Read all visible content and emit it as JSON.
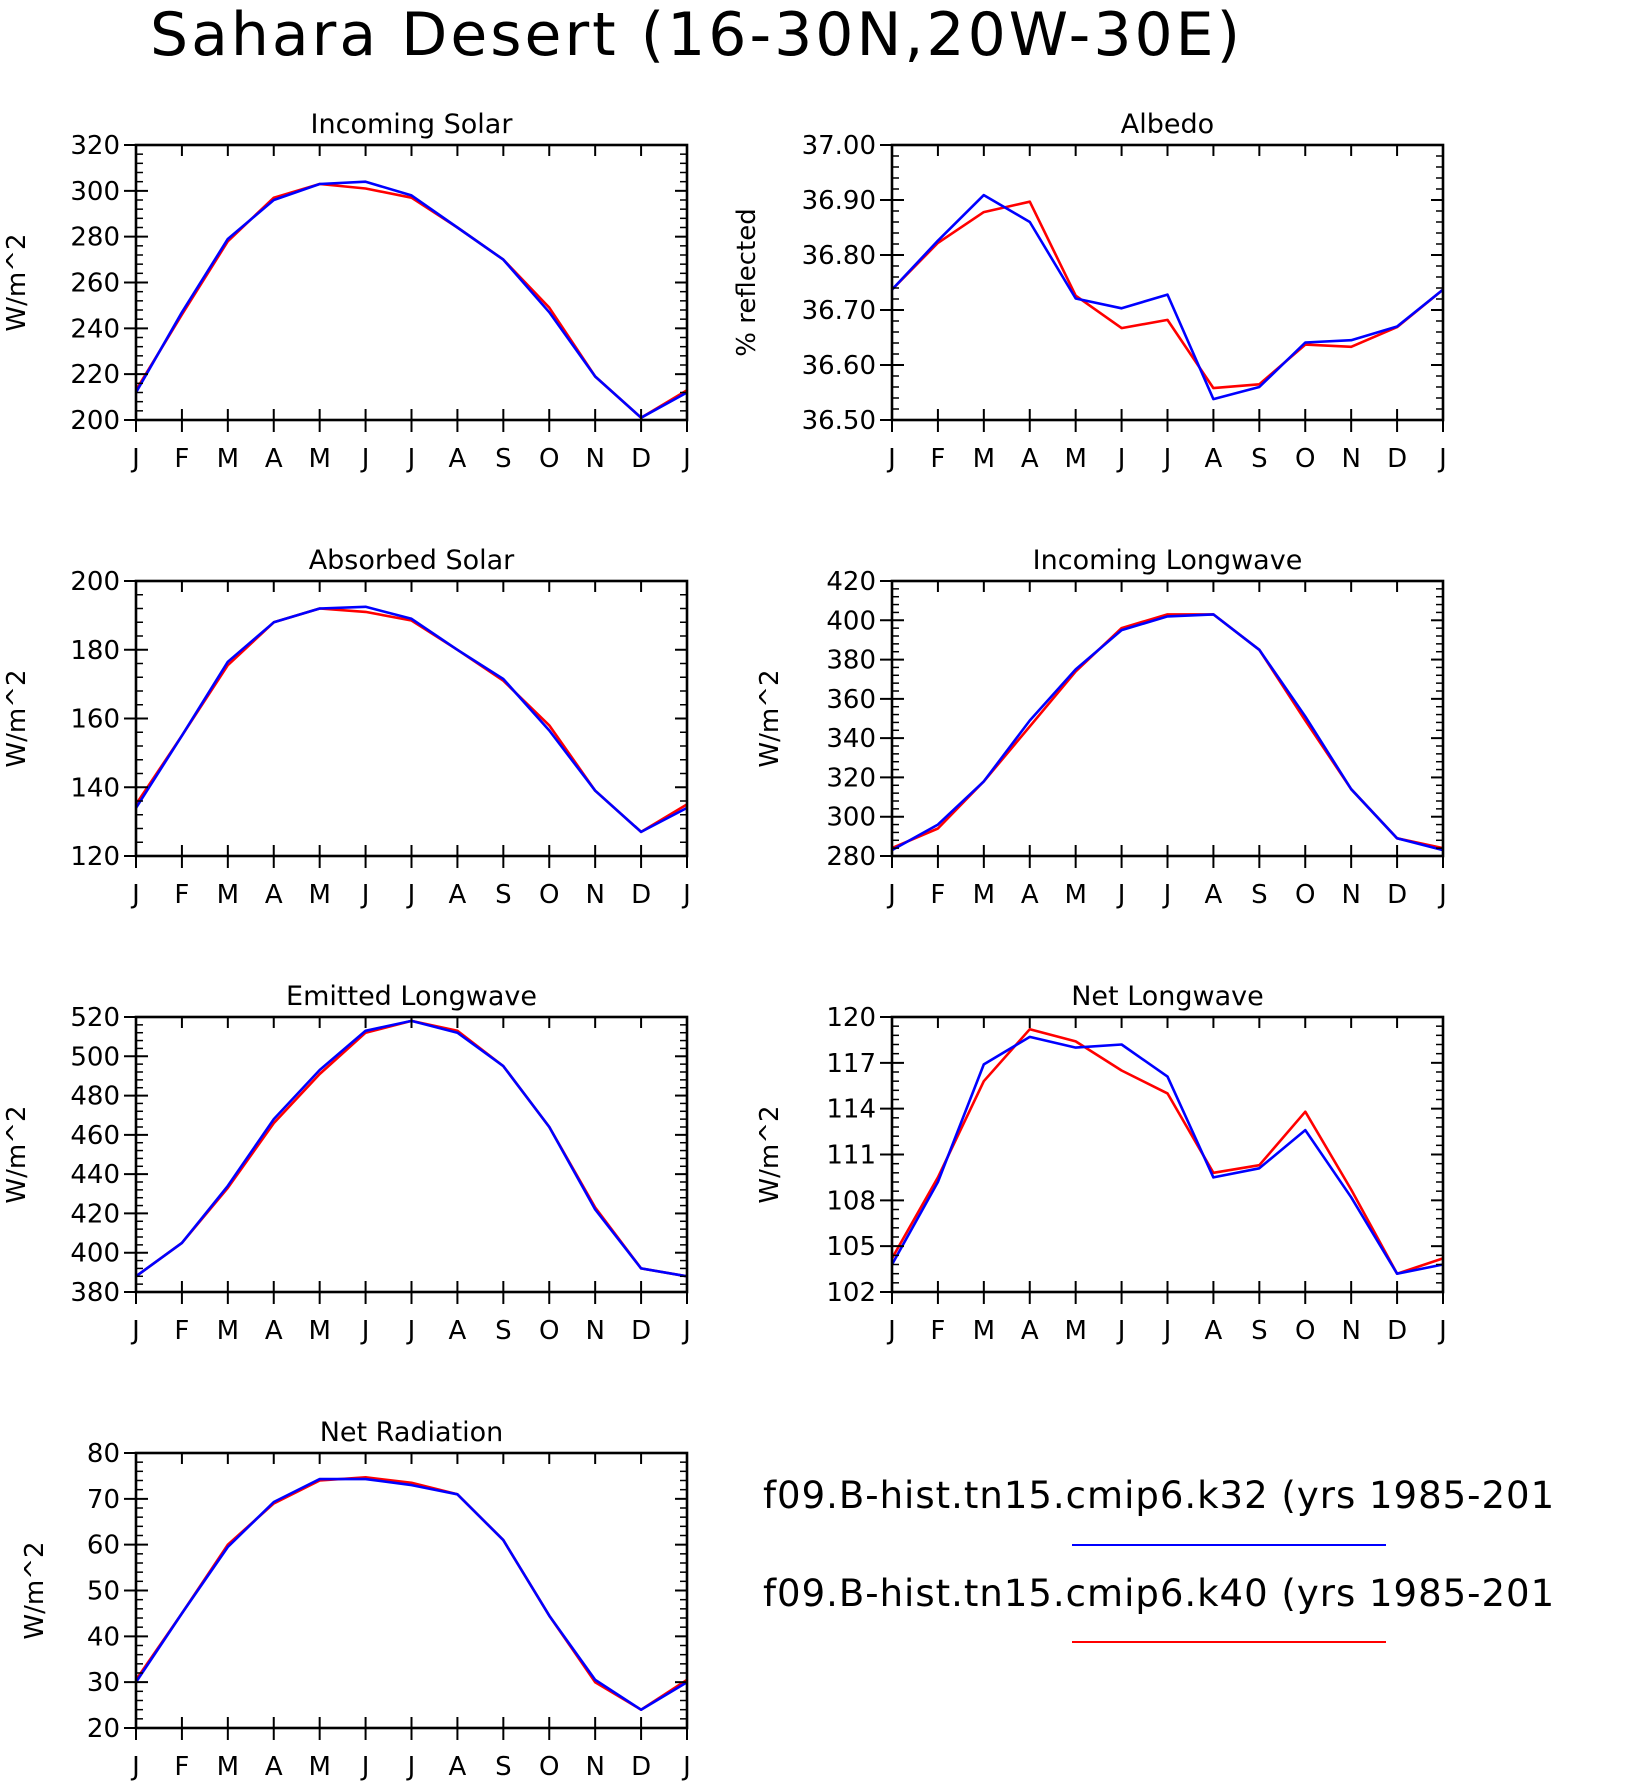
{
  "title": "Sahara Desert (16-30N,20W-30E)",
  "legend": [
    {
      "label": "f09.B-hist.tn15.cmip6.k32 (yrs 1985-201",
      "color": "#0000ff"
    },
    {
      "label": "f09.B-hist.tn15.cmip6.k40 (yrs 1985-201",
      "color": "#ff0000"
    }
  ],
  "chart_data": [
    {
      "type": "line",
      "title": "Incoming Solar",
      "ylabel": "W/m^2",
      "categories": [
        "J",
        "F",
        "M",
        "A",
        "M",
        "J",
        "J",
        "A",
        "S",
        "O",
        "N",
        "D",
        "J"
      ],
      "ylim": [
        200,
        320
      ],
      "yticks": [
        200,
        220,
        240,
        260,
        280,
        300,
        320
      ],
      "yticklabels": [
        "200",
        "220",
        "240",
        "260",
        "280",
        "300",
        "320"
      ],
      "series": [
        {
          "color": "#ff0000",
          "values": [
            213,
            246,
            278,
            297,
            303,
            301,
            297,
            284,
            270,
            249,
            219,
            201,
            213
          ]
        },
        {
          "color": "#0000ff",
          "values": [
            212,
            247,
            279,
            296,
            303,
            304,
            298,
            284,
            270,
            247,
            219,
            201,
            212
          ]
        }
      ]
    },
    {
      "type": "line",
      "title": "Albedo",
      "ylabel": "% reflected",
      "categories": [
        "J",
        "F",
        "M",
        "A",
        "M",
        "J",
        "J",
        "A",
        "S",
        "O",
        "N",
        "D",
        "J"
      ],
      "ylim": [
        36.5,
        37.0
      ],
      "yticks": [
        36.5,
        36.6,
        36.7,
        36.8,
        36.9,
        37.0
      ],
      "yticklabels": [
        "36.50",
        "36.60",
        "36.70",
        "36.80",
        "36.90",
        "37.00"
      ],
      "series": [
        {
          "color": "#ff0000",
          "values": [
            36.737,
            36.822,
            36.878,
            36.897,
            36.726,
            36.667,
            36.682,
            36.558,
            36.565,
            36.637,
            36.633,
            36.669,
            36.737
          ]
        },
        {
          "color": "#0000ff",
          "values": [
            36.737,
            36.826,
            36.909,
            36.86,
            36.721,
            36.703,
            36.728,
            36.538,
            36.56,
            36.641,
            36.645,
            36.67,
            36.737
          ]
        }
      ]
    },
    {
      "type": "line",
      "title": "Absorbed Solar",
      "ylabel": "W/m^2",
      "categories": [
        "J",
        "F",
        "M",
        "A",
        "M",
        "J",
        "J",
        "A",
        "S",
        "O",
        "N",
        "D",
        "J"
      ],
      "ylim": [
        120,
        200
      ],
      "yticks": [
        120,
        140,
        160,
        180,
        200
      ],
      "yticklabels": [
        "120",
        "140",
        "160",
        "180",
        "200"
      ],
      "series": [
        {
          "color": "#ff0000",
          "values": [
            135,
            155,
            175.5,
            188,
            192,
            191,
            188.5,
            180,
            171,
            158,
            139,
            127,
            135
          ]
        },
        {
          "color": "#0000ff",
          "values": [
            134,
            155,
            176.5,
            188,
            192,
            192.5,
            189,
            180,
            171.5,
            156.5,
            139,
            127,
            134
          ]
        }
      ]
    },
    {
      "type": "line",
      "title": "Incoming Longwave",
      "ylabel": "W/m^2",
      "categories": [
        "J",
        "F",
        "M",
        "A",
        "M",
        "J",
        "J",
        "A",
        "S",
        "O",
        "N",
        "D",
        "J"
      ],
      "ylim": [
        280,
        420
      ],
      "yticks": [
        280,
        300,
        320,
        340,
        360,
        380,
        400,
        420
      ],
      "yticklabels": [
        "280",
        "300",
        "320",
        "340",
        "360",
        "380",
        "400",
        "420"
      ],
      "series": [
        {
          "color": "#ff0000",
          "values": [
            284,
            294,
            318,
            346,
            374,
            396,
            403,
            403,
            385,
            349,
            314,
            289,
            284
          ]
        },
        {
          "color": "#0000ff",
          "values": [
            283,
            296,
            318,
            349,
            375,
            395,
            402,
            403,
            385,
            351,
            314,
            289,
            283
          ]
        }
      ]
    },
    {
      "type": "line",
      "title": "Emitted Longwave",
      "ylabel": "W/m^2",
      "categories": [
        "J",
        "F",
        "M",
        "A",
        "M",
        "J",
        "J",
        "A",
        "S",
        "O",
        "N",
        "D",
        "J"
      ],
      "ylim": [
        380,
        520
      ],
      "yticks": [
        380,
        400,
        420,
        440,
        460,
        480,
        500,
        520
      ],
      "yticklabels": [
        "380",
        "400",
        "420",
        "440",
        "460",
        "480",
        "500",
        "520"
      ],
      "series": [
        {
          "color": "#ff0000",
          "values": [
            388,
            405,
            433,
            466,
            491,
            512,
            518,
            513,
            495,
            464,
            423,
            392,
            388
          ]
        },
        {
          "color": "#0000ff",
          "values": [
            388,
            405,
            434,
            468,
            493,
            513,
            518,
            512,
            495,
            464,
            422,
            392,
            388
          ]
        }
      ]
    },
    {
      "type": "line",
      "title": "Net Longwave",
      "ylabel": "W/m^2",
      "categories": [
        "J",
        "F",
        "M",
        "A",
        "M",
        "J",
        "J",
        "A",
        "S",
        "O",
        "N",
        "D",
        "J"
      ],
      "ylim": [
        102,
        120
      ],
      "yticks": [
        102,
        105,
        108,
        111,
        114,
        117,
        120
      ],
      "yticklabels": [
        "102",
        "105",
        "108",
        "111",
        "114",
        "117",
        "120"
      ],
      "series": [
        {
          "color": "#ff0000",
          "values": [
            104.2,
            109.5,
            115.8,
            119.2,
            118.4,
            116.5,
            115.0,
            109.8,
            110.3,
            113.8,
            108.7,
            103.2,
            104.2
          ]
        },
        {
          "color": "#0000ff",
          "values": [
            103.8,
            109.2,
            116.9,
            118.7,
            118.0,
            118.2,
            116.1,
            109.5,
            110.1,
            112.6,
            108.2,
            103.2,
            103.8
          ]
        }
      ]
    },
    {
      "type": "line",
      "title": "Net Radiation",
      "ylabel": "W/m^2",
      "categories": [
        "J",
        "F",
        "M",
        "A",
        "M",
        "J",
        "J",
        "A",
        "S",
        "O",
        "N",
        "D",
        "J"
      ],
      "ylim": [
        20,
        80
      ],
      "yticks": [
        20,
        30,
        40,
        50,
        60,
        70,
        80
      ],
      "yticklabels": [
        "20",
        "30",
        "40",
        "50",
        "60",
        "70",
        "80"
      ],
      "series": [
        {
          "color": "#ff0000",
          "values": [
            30.5,
            45,
            60,
            69,
            74,
            74.7,
            73.5,
            71,
            61,
            44.5,
            30,
            24,
            30.5
          ]
        },
        {
          "color": "#0000ff",
          "values": [
            30,
            45,
            59.5,
            69.3,
            74.3,
            74.3,
            73,
            71,
            61,
            44.5,
            30.5,
            24,
            30
          ]
        }
      ]
    }
  ]
}
